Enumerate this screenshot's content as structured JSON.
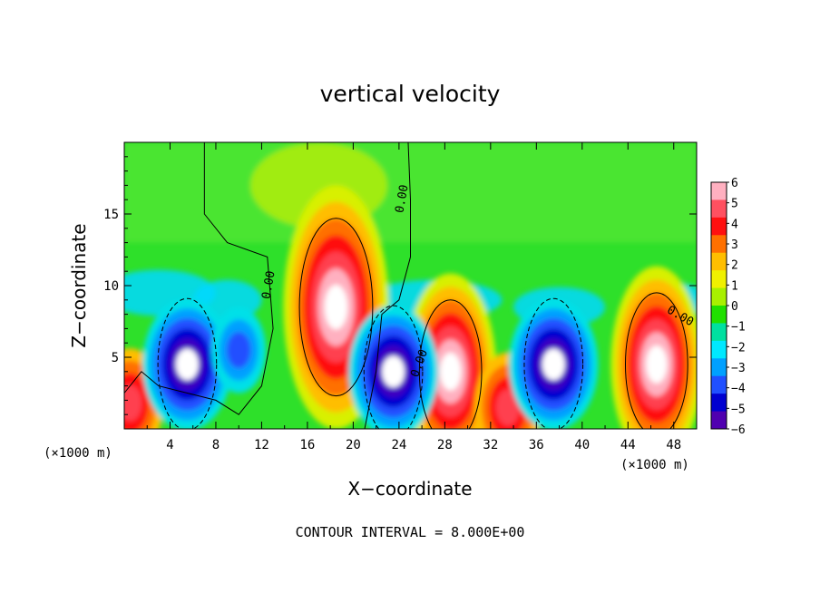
{
  "chart_data": {
    "type": "heatmap",
    "title": "vertical velocity",
    "xlabel": "X−coordinate",
    "ylabel": "Z−coordinate",
    "x_unit": "(×1000 m)",
    "y_unit": "(×1000 m)",
    "xlim": [
      0,
      50
    ],
    "ylim": [
      0,
      20
    ],
    "x_ticks": [
      "4",
      "8",
      "12",
      "16",
      "20",
      "24",
      "28",
      "32",
      "36",
      "40",
      "44",
      "48"
    ],
    "y_ticks": [
      "5",
      "10",
      "15"
    ],
    "colorbar": {
      "range": [
        -6,
        6
      ],
      "ticks": [
        "6",
        "5",
        "4",
        "3",
        "2",
        "1",
        "0",
        "−1",
        "−2",
        "−3",
        "−4",
        "−5",
        "−6"
      ],
      "colors": [
        "#ffb0c0",
        "#ff5060",
        "#ff1010",
        "#ff7000",
        "#ffbe00",
        "#f0f000",
        "#a8f000",
        "#20e000",
        "#00e0a0",
        "#00e8ff",
        "#00a0ff",
        "#2050ff",
        "#0000d0",
        "#5000b0"
      ]
    },
    "contour_interval_text": "CONTOUR INTERVAL = 8.000E+00",
    "contour_labels": [
      "0.00",
      "0.00",
      "0.00",
      "0.00"
    ],
    "updrafts": [
      {
        "x": 18.5,
        "z": 8.5,
        "peak": 20
      },
      {
        "x": 28.5,
        "z": 4.0,
        "peak": 14
      },
      {
        "x": 46.5,
        "z": 4.5,
        "peak": 14
      },
      {
        "x": 33.5,
        "z": 1.5,
        "peak": 3
      },
      {
        "x": 0.5,
        "z": 1.8,
        "peak": 3
      }
    ],
    "downdrafts": [
      {
        "x": 5.5,
        "z": 4.5,
        "peak": -12
      },
      {
        "x": 23.5,
        "z": 4.0,
        "peak": -12
      },
      {
        "x": 37.5,
        "z": 4.5,
        "peak": -12
      },
      {
        "x": 10.0,
        "z": 5.5,
        "peak": -4
      }
    ]
  }
}
